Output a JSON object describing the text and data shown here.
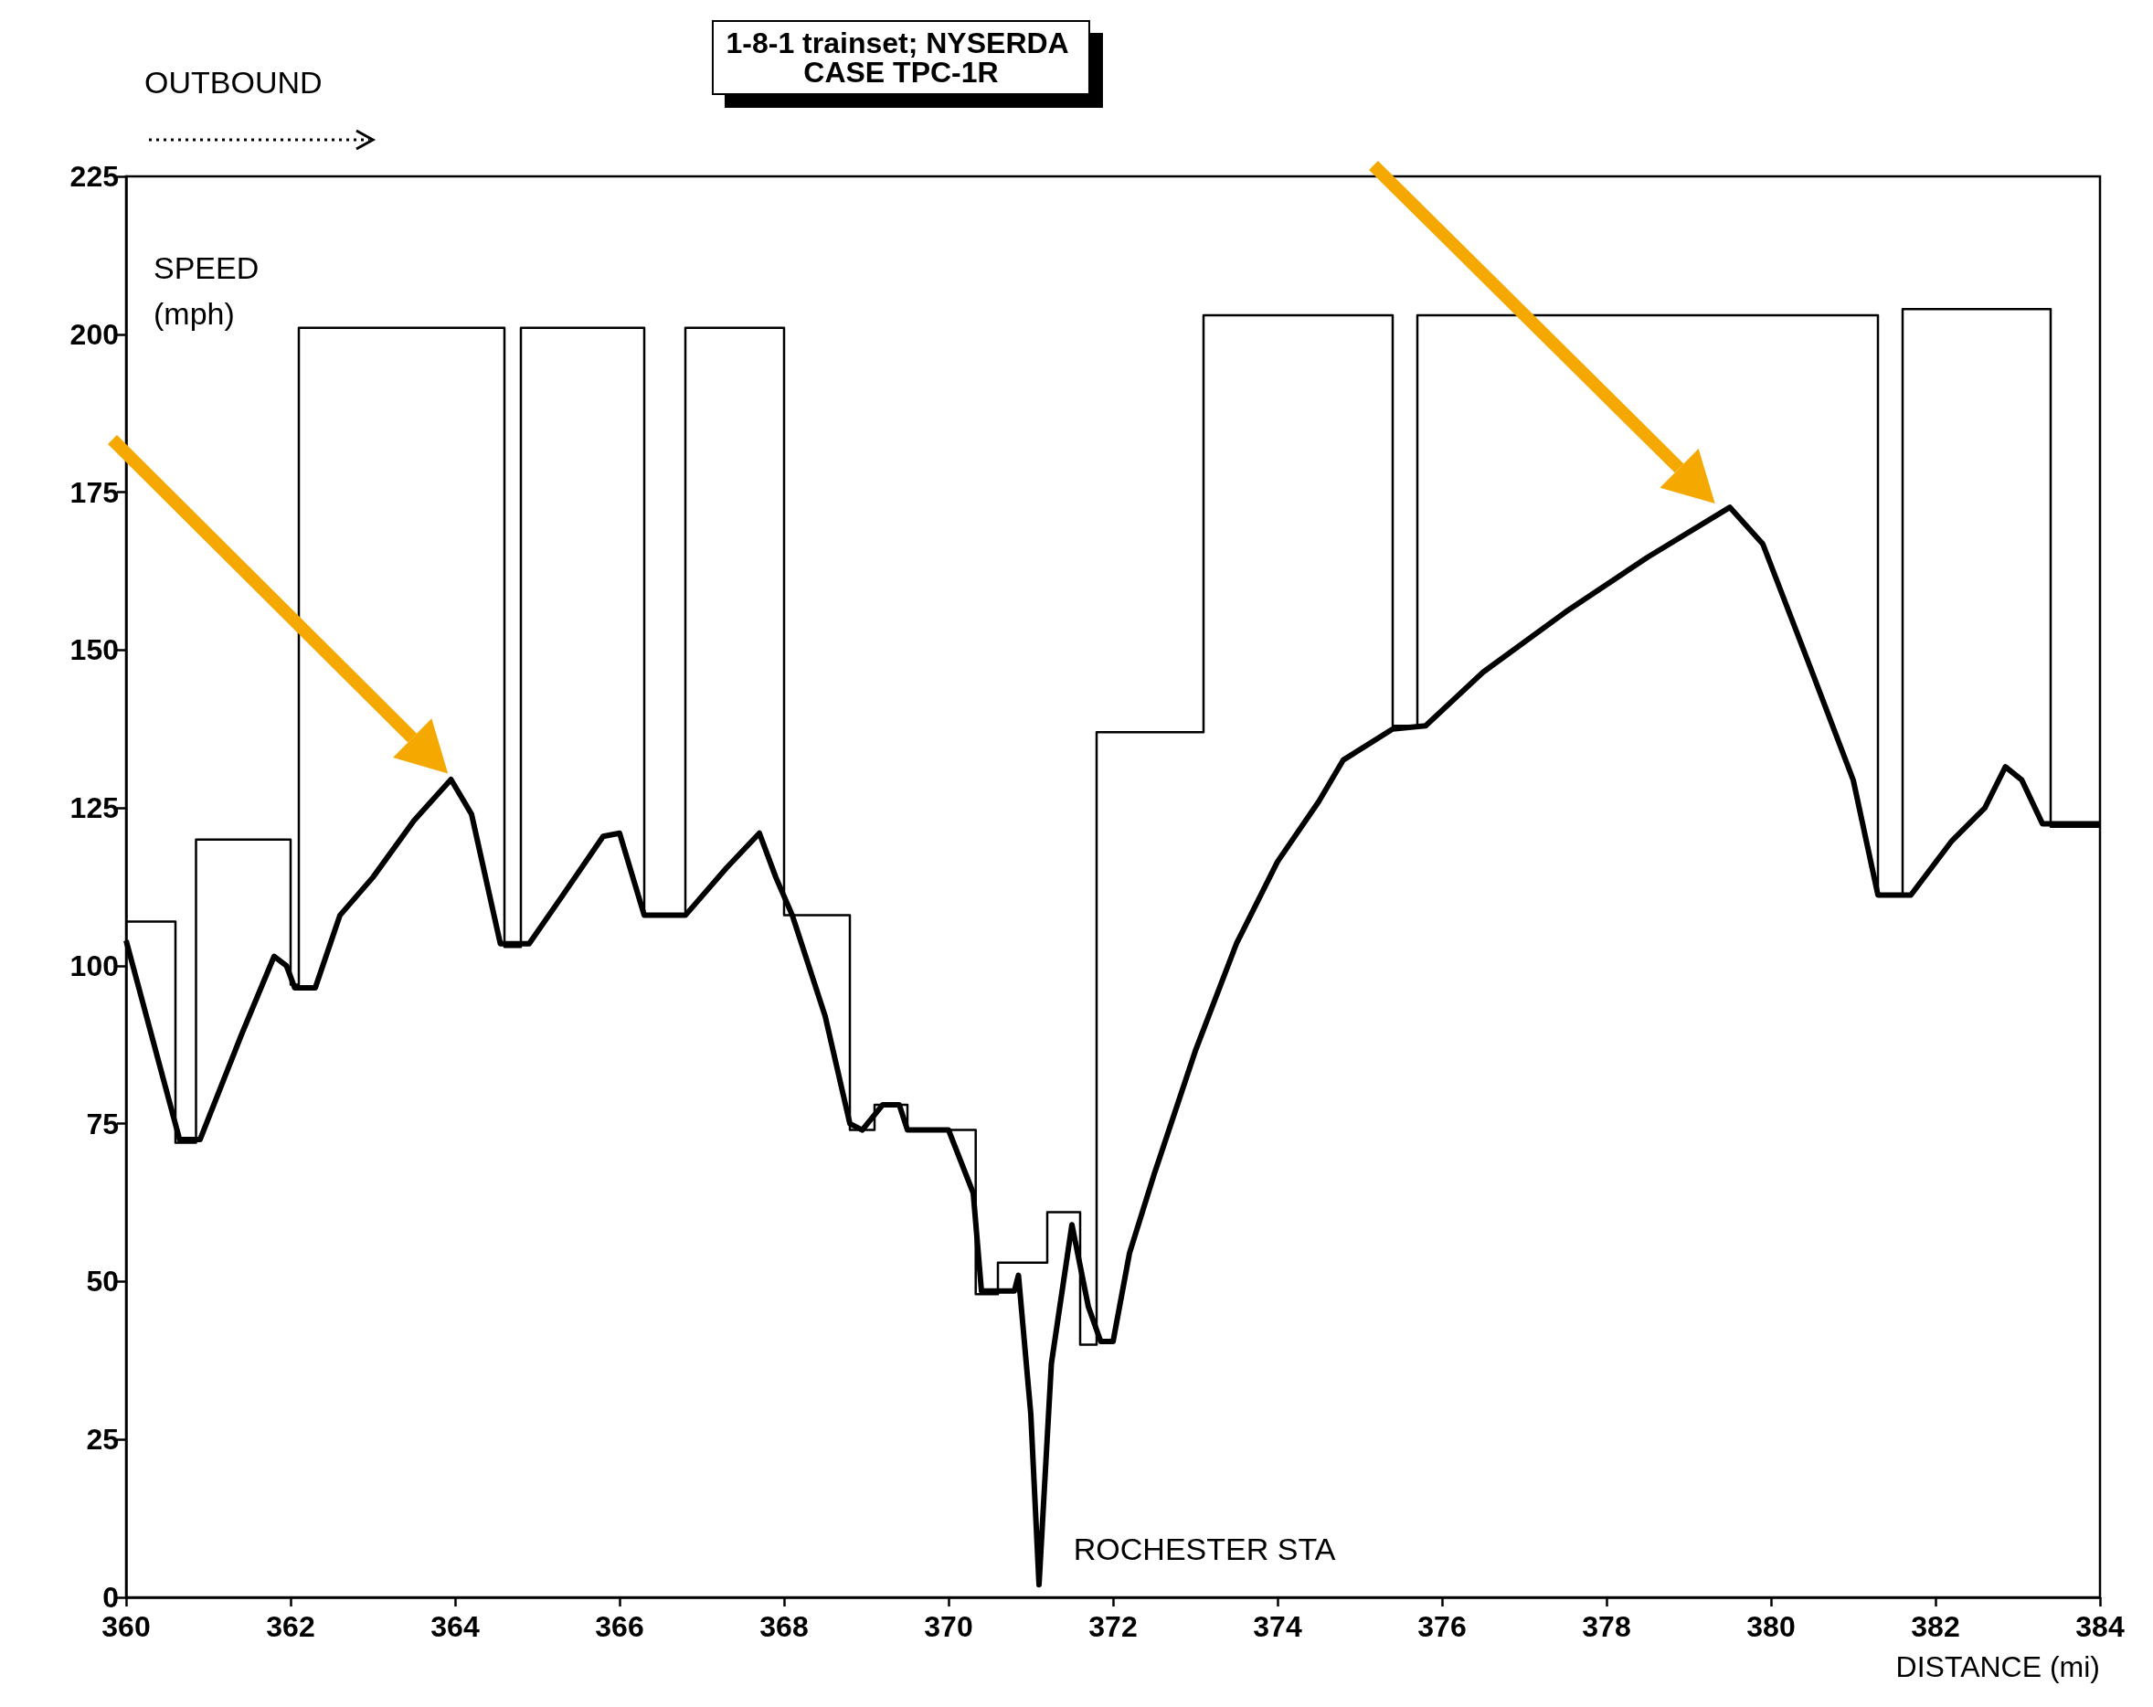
{
  "chart_data": {
    "type": "line",
    "title": "1-8-1 trainset; NYSERDA CASE TPC-1R",
    "xlabel": "DISTANCE (mi)",
    "ylabel": "SPEED (mph)",
    "annotations": [
      "OUTBOUND",
      "ROCHESTER STA"
    ],
    "xlim": [
      360,
      384
    ],
    "xticks": [
      360,
      362,
      364,
      366,
      368,
      370,
      372,
      374,
      376,
      378,
      380,
      382,
      384
    ],
    "ylim": [
      0,
      225
    ],
    "yticks": [
      0,
      25,
      50,
      75,
      100,
      125,
      150,
      175,
      200,
      225
    ],
    "marker": "none",
    "series": [
      {
        "type": "step",
        "color": "#000000",
        "x": [
          360,
          360.6,
          360.85,
          362,
          362.1,
          364.6,
          364.8,
          366.3,
          366.8,
          368,
          368.8,
          369.1,
          369.5,
          370.33,
          370.6,
          371.2,
          371.6,
          371.8,
          373.1,
          375.4,
          375.7,
          381.3,
          381.6,
          383.4,
          384
        ],
        "values": [
          107,
          72,
          120,
          97,
          201,
          103,
          201,
          108,
          201,
          108,
          74,
          78,
          74,
          48,
          53,
          61,
          40,
          137,
          203,
          138,
          203,
          111,
          204,
          122,
          122
        ]
      },
      {
        "type": "line",
        "color": "#000000",
        "x": [
          360,
          360.65,
          360.9,
          361.4,
          361.8,
          361.95,
          362.05,
          362.3,
          362.6,
          363,
          363.5,
          363.95,
          364.2,
          364.55,
          364.9,
          365.3,
          365.8,
          366,
          366.3,
          366.8,
          367.3,
          367.7,
          367.9,
          368.1,
          368.5,
          368.8,
          368.95,
          369.2,
          369.4,
          369.5,
          370,
          370.3,
          370.4,
          370.8,
          370.85,
          371,
          371.1,
          371.25,
          371.5,
          371.7,
          371.85,
          372,
          372.2,
          372.5,
          373,
          373.5,
          374,
          374.5,
          374.8,
          375.4,
          375.8,
          376.5,
          377.5,
          378.5,
          379.5,
          379.9,
          380.5,
          381,
          381.3,
          381.7,
          382.2,
          382.6,
          382.85,
          383.05,
          383.3,
          384
        ],
        "values": [
          104,
          72.5,
          72.5,
          89,
          101.5,
          100,
          96.5,
          96.5,
          108,
          114,
          123,
          129.5,
          124,
          103.5,
          103.5,
          111,
          120.5,
          121,
          108,
          108,
          115.5,
          121,
          114,
          108,
          92,
          75,
          74,
          78,
          78,
          74,
          74,
          64,
          48.5,
          48.5,
          51,
          29,
          2,
          37,
          59,
          46,
          40.5,
          40.5,
          54.5,
          67,
          86.5,
          103.5,
          116.5,
          126,
          132.6,
          137.5,
          138,
          146.5,
          156,
          164.7,
          172.6,
          166.8,
          146.5,
          129.4,
          111.2,
          111.2,
          119.8,
          125,
          131.5,
          129.4,
          122.5,
          122.5
        ]
      }
    ]
  }
}
